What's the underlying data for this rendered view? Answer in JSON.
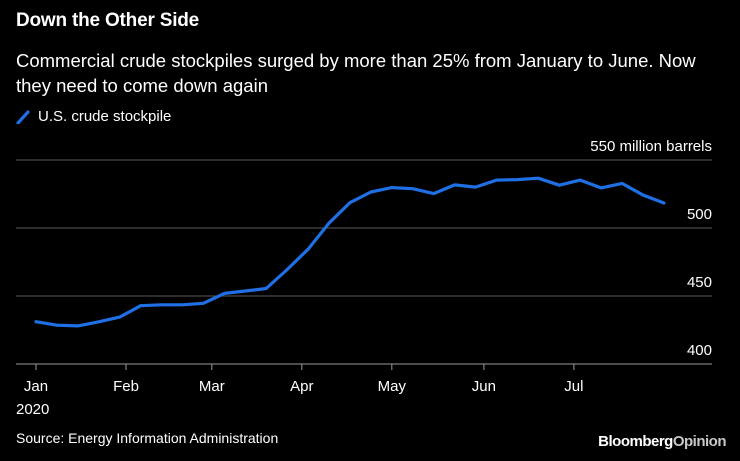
{
  "header": {
    "title": "Down the Other Side",
    "subtitle": "Commercial crude stockpiles surged by more than 25% from January to June. Now they need to come down again"
  },
  "colors": {
    "background": "#000000",
    "line": "#1f6fe5",
    "grid": "#5a5a5a",
    "text": "#ffffff"
  },
  "chart_data": {
    "type": "line",
    "title": "Down the Other Side",
    "xlabel": "",
    "ylabel": "million barrels",
    "ylim": [
      400,
      550
    ],
    "y_ticks": [
      {
        "value": 550,
        "label": "550 million barrels"
      },
      {
        "value": 500,
        "label": "500"
      },
      {
        "value": 450,
        "label": "450"
      },
      {
        "value": 400,
        "label": "400"
      }
    ],
    "x_ticks": [
      {
        "week": 0,
        "label": "Jan"
      },
      {
        "week": 4.3,
        "label": "Feb"
      },
      {
        "week": 8.4,
        "label": "Mar"
      },
      {
        "week": 12.7,
        "label": "Apr"
      },
      {
        "week": 17,
        "label": "May"
      },
      {
        "week": 21.4,
        "label": "Jun"
      },
      {
        "week": 25.7,
        "label": "Jul"
      }
    ],
    "year_label": "2020",
    "legend": {
      "label": "U.S. crude stockpile",
      "position": "top-left"
    },
    "series": [
      {
        "name": "U.S. crude stockpile",
        "x": [
          0,
          1,
          2,
          3,
          4,
          5,
          6,
          7,
          8,
          9,
          10,
          11,
          12,
          13,
          14,
          15,
          16,
          17,
          18,
          19,
          20,
          21,
          22,
          23,
          24,
          25,
          26,
          27,
          28,
          29,
          30
        ],
        "values": [
          431.1,
          428.5,
          428.0,
          431.0,
          434.5,
          442.9,
          443.5,
          443.5,
          444.6,
          451.9,
          453.7,
          455.5,
          469.5,
          484.4,
          503.6,
          518.6,
          526.5,
          529.7,
          528.9,
          525.3,
          531.7,
          530.1,
          535.2,
          535.6,
          536.6,
          531.5,
          535.2,
          529.5,
          532.8,
          524.3,
          518.4
        ]
      }
    ]
  },
  "footer": {
    "source": "Source: Energy Information Administration",
    "brand_part1": "Bloomberg",
    "brand_part2": "Opinion"
  }
}
